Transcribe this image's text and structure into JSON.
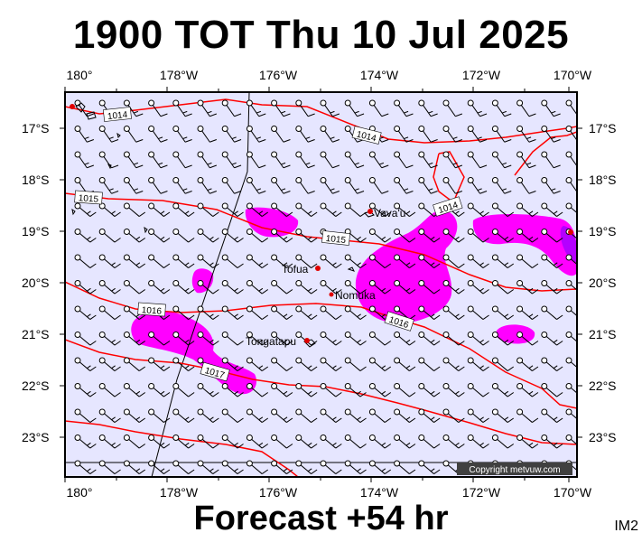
{
  "title": "1900 TOT Thu 10 Jul 2025",
  "subtitle": "Forecast +54 hr",
  "corner_label": "IM2",
  "copyright": "Copyright metvuw.com",
  "axes": {
    "lon_labels": [
      "180°",
      "178°W",
      "176°W",
      "174°W",
      "172°W",
      "170°W"
    ],
    "lat_labels": [
      "17°S",
      "18°S",
      "19°S",
      "20°S",
      "21°S",
      "22°S",
      "23°S"
    ]
  },
  "places": [
    {
      "name": "Vava'u"
    },
    {
      "name": "Tofua"
    },
    {
      "name": "Nomuka"
    },
    {
      "name": "Tongatapu"
    }
  ],
  "isobar_labels": [
    "1014",
    "1014",
    "1014",
    "1015",
    "1015",
    "1016",
    "1016",
    "1017"
  ],
  "colors": {
    "ocean": "#e6e6ff",
    "isobar": "#ff0000",
    "rain": "#ff00ff",
    "rain_heavy": "#b400ff",
    "barb": "#000000"
  }
}
